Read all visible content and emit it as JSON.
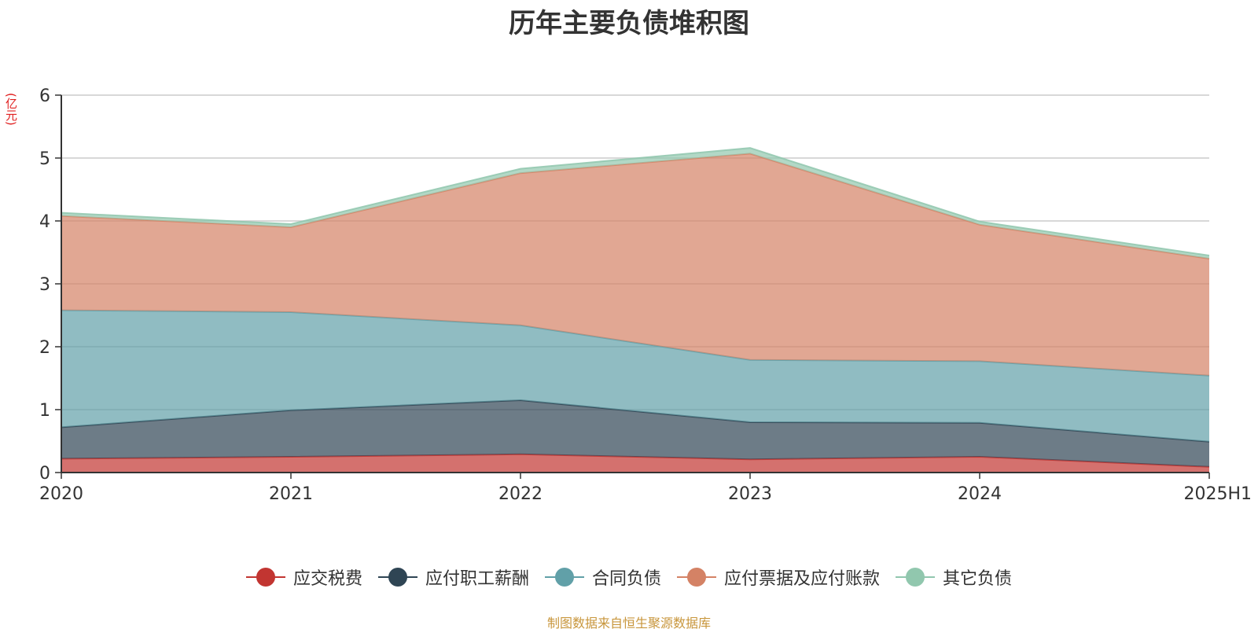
{
  "header": {
    "title": "历年主要负债堆积图",
    "unit": "(亿元)"
  },
  "footer": {
    "source": "制图数据来自恒生聚源数据库"
  },
  "chart_data": {
    "type": "area",
    "stacked": true,
    "title": "历年主要负债堆积图",
    "ylabel": "(亿元)",
    "xlabel": "",
    "ylim": [
      0,
      6
    ],
    "yticks": [
      0,
      1,
      2,
      3,
      4,
      5,
      6
    ],
    "grid": true,
    "legend_position": "bottom",
    "categories": [
      "2020",
      "2021",
      "2022",
      "2023",
      "2024",
      "2025H1"
    ],
    "series": [
      {
        "name": "应交税费",
        "color": "#c23531",
        "values": [
          0.22,
          0.25,
          0.29,
          0.21,
          0.25,
          0.09
        ]
      },
      {
        "name": "应付职工薪酬",
        "color": "#2f4554",
        "values": [
          0.5,
          0.74,
          0.86,
          0.59,
          0.54,
          0.4
        ]
      },
      {
        "name": "合同负债",
        "color": "#61a0a8",
        "values": [
          1.86,
          1.56,
          1.19,
          0.99,
          0.98,
          1.05
        ]
      },
      {
        "name": "应付票据及应付账款",
        "color": "#d48265",
        "values": [
          1.5,
          1.35,
          2.42,
          3.28,
          2.17,
          1.86
        ]
      },
      {
        "name": "其它负债",
        "color": "#91c7ae",
        "values": [
          0.05,
          0.05,
          0.07,
          0.09,
          0.05,
          0.05
        ]
      }
    ]
  }
}
